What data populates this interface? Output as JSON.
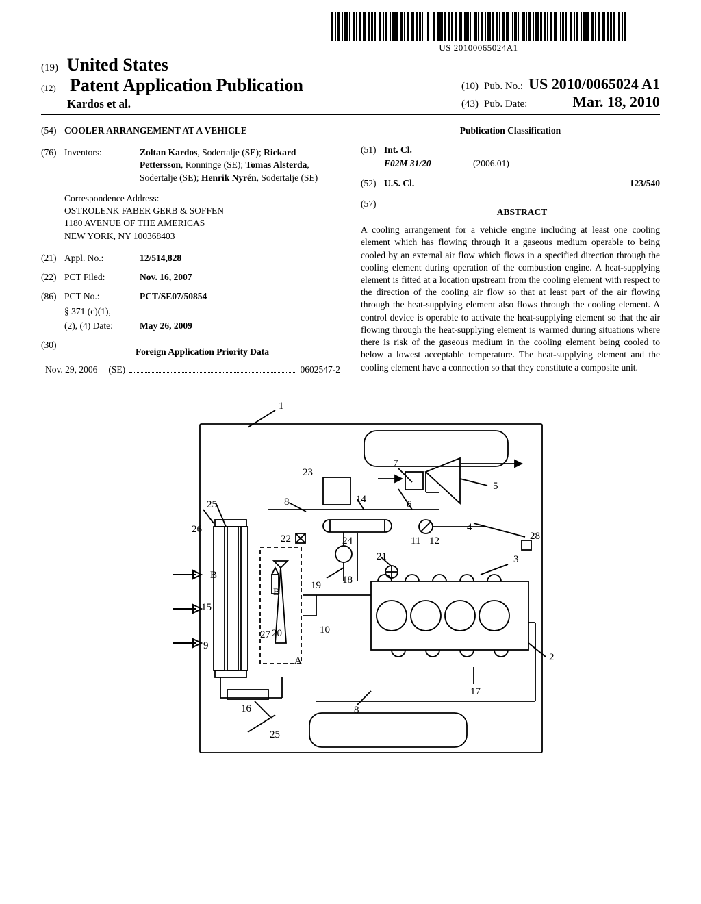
{
  "barcode_text": "US 20100065024A1",
  "header": {
    "inid19": "(19)",
    "country": "United States",
    "inid12": "(12)",
    "doc_type": "Patent Application Publication",
    "authors": "Kardos et al.",
    "inid10": "(10)",
    "pub_no_label": "Pub. No.:",
    "pub_no": "US 2010/0065024 A1",
    "inid43": "(43)",
    "pub_date_label": "Pub. Date:",
    "pub_date": "Mar. 18, 2010"
  },
  "left": {
    "inid54": "(54)",
    "title": "COOLER ARRANGEMENT AT A VEHICLE",
    "inid76": "(76)",
    "inventors_label": "Inventors:",
    "inventors_html": "Zoltan Kardos|, Sodertalje (SE); |Rickard Pettersson|, Ronninge (SE); |Tomas Alsterda|, Sodertalje (SE); |Henrik Nyrén|, Sodertalje (SE)",
    "corr_label": "Correspondence Address:",
    "corr_line1": "OSTROLENK FABER GERB & SOFFEN",
    "corr_line2": "1180 AVENUE OF THE AMERICAS",
    "corr_line3": "NEW YORK, NY 100368403",
    "inid21": "(21)",
    "appl_no_label": "Appl. No.:",
    "appl_no": "12/514,828",
    "inid22": "(22)",
    "pct_filed_label": "PCT Filed:",
    "pct_filed": "Nov. 16, 2007",
    "inid86": "(86)",
    "pct_no_label": "PCT No.:",
    "pct_no": "PCT/SE07/50854",
    "s371_label1": "§ 371 (c)(1),",
    "s371_label2": "(2), (4) Date:",
    "s371_date": "May 26, 2009",
    "inid30": "(30)",
    "priority_header": "Foreign Application Priority Data",
    "priority_date": "Nov. 29, 2006",
    "priority_country": "(SE)",
    "priority_num": "0602547-2"
  },
  "right": {
    "pub_class_header": "Publication Classification",
    "inid51": "(51)",
    "intcl_label": "Int. Cl.",
    "intcl_code": "F02M 31/20",
    "intcl_date": "(2006.01)",
    "inid52": "(52)",
    "uscl_label": "U.S. Cl.",
    "uscl_value": "123/540",
    "inid57": "(57)",
    "abstract_header": "ABSTRACT",
    "abstract": "A cooling arrangement for a vehicle engine including at least one cooling element which has flowing through it a gaseous medium operable to being cooled by an external air flow which flows in a specified direction through the cooling element during operation of the combustion engine. A heat-supplying element is fitted at a location upstream from the cooling element with respect to the direction of the cooling air flow so that at least part of the air flowing through the heat-supplying element also flows through the cooling element. A control device is operable to activate the heat-supplying element so that the air flowing through the heat-supplying element is warmed during situations where there is risk of the gaseous medium in the cooling element being cooled to below a lowest acceptable temperature. The heat-supplying element and the cooling element have a connection so that they constitute a composite unit."
  },
  "figure": {
    "labels": [
      "1",
      "2",
      "3",
      "4",
      "5",
      "6",
      "7",
      "8",
      "8",
      "9",
      "10",
      "11",
      "12",
      "14",
      "15",
      "16",
      "17",
      "18",
      "19",
      "20",
      "21",
      "22",
      "23",
      "24",
      "25",
      "25",
      "26",
      "27",
      "28",
      "A",
      "B",
      "B"
    ],
    "stroke": "#000000",
    "stroke_width": 1.8,
    "bg": "#ffffff"
  }
}
